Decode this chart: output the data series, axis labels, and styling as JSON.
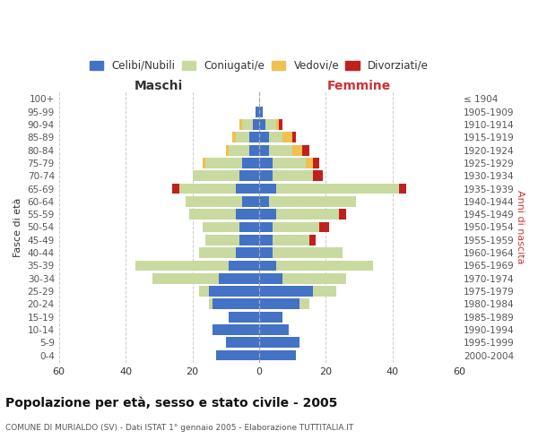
{
  "age_groups": [
    "0-4",
    "5-9",
    "10-14",
    "15-19",
    "20-24",
    "25-29",
    "30-34",
    "35-39",
    "40-44",
    "45-49",
    "50-54",
    "55-59",
    "60-64",
    "65-69",
    "70-74",
    "75-79",
    "80-84",
    "85-89",
    "90-94",
    "95-99",
    "100+"
  ],
  "birth_years": [
    "2000-2004",
    "1995-1999",
    "1990-1994",
    "1985-1989",
    "1980-1984",
    "1975-1979",
    "1970-1974",
    "1965-1969",
    "1960-1964",
    "1955-1959",
    "1950-1954",
    "1945-1949",
    "1940-1944",
    "1935-1939",
    "1930-1934",
    "1925-1929",
    "1920-1924",
    "1915-1919",
    "1910-1914",
    "1905-1909",
    "≤ 1904"
  ],
  "male_celibi": [
    13,
    10,
    14,
    9,
    14,
    15,
    12,
    9,
    7,
    6,
    6,
    7,
    5,
    7,
    6,
    5,
    3,
    3,
    2,
    1,
    0
  ],
  "male_coniugati": [
    0,
    0,
    0,
    0,
    1,
    3,
    20,
    28,
    11,
    10,
    11,
    14,
    17,
    17,
    14,
    11,
    6,
    4,
    3,
    0,
    0
  ],
  "male_vedovi": [
    0,
    0,
    0,
    0,
    0,
    0,
    0,
    0,
    0,
    0,
    0,
    0,
    0,
    0,
    0,
    1,
    1,
    1,
    1,
    0,
    0
  ],
  "male_divorziati": [
    0,
    0,
    0,
    0,
    0,
    0,
    0,
    0,
    0,
    0,
    0,
    0,
    0,
    2,
    0,
    0,
    0,
    0,
    0,
    0,
    0
  ],
  "female_celibi": [
    11,
    12,
    9,
    7,
    12,
    16,
    7,
    5,
    4,
    4,
    4,
    5,
    3,
    5,
    4,
    4,
    3,
    3,
    2,
    1,
    0
  ],
  "female_coniugati": [
    0,
    0,
    0,
    0,
    3,
    7,
    19,
    29,
    21,
    11,
    14,
    19,
    26,
    37,
    12,
    10,
    7,
    4,
    3,
    0,
    0
  ],
  "female_vedovi": [
    0,
    0,
    0,
    0,
    0,
    0,
    0,
    0,
    0,
    0,
    0,
    0,
    0,
    0,
    0,
    2,
    3,
    3,
    1,
    0,
    0
  ],
  "female_divorziati": [
    0,
    0,
    0,
    0,
    0,
    0,
    0,
    0,
    0,
    2,
    3,
    2,
    0,
    2,
    3,
    2,
    2,
    1,
    1,
    0,
    0
  ],
  "color_celibi": "#4472c4",
  "color_coniugati": "#c8daa0",
  "color_vedovi": "#f0c050",
  "color_divorziati": "#c0211e",
  "title": "Popolazione per età, sesso e stato civile - 2005",
  "subtitle": "COMUNE DI MURIALDO (SV) - Dati ISTAT 1° gennaio 2005 - Elaborazione TUTTITALIA.IT",
  "xlabel_left": "Maschi",
  "xlabel_right": "Femmine",
  "ylabel_left": "Fasce di età",
  "ylabel_right": "Anni di nascita",
  "xlim": 60,
  "background_color": "#ffffff",
  "grid_color": "#cccccc"
}
